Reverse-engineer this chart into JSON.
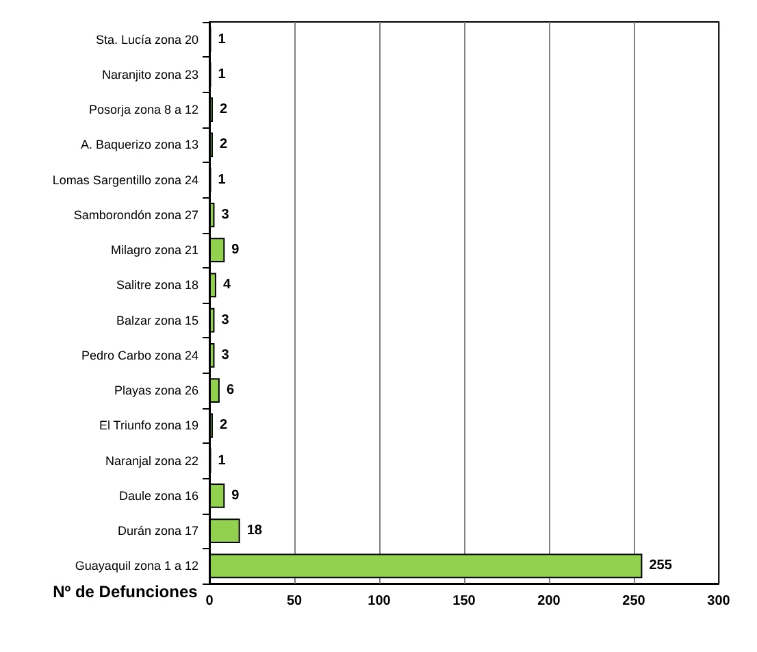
{
  "chart_data": {
    "type": "bar",
    "orientation": "horizontal",
    "xlabel": "Nº de Defunciones",
    "categories": [
      "Sta. Lucía zona 20",
      "Naranjito zona 23",
      "Posorja zona 8 a 12",
      "A. Baquerizo zona 13",
      "Lomas Sargentillo zona 24",
      "Samborondón zona 27",
      "Milagro zona 21",
      "Salitre zona 18",
      "Balzar zona 15",
      "Pedro Carbo zona 24",
      "Playas zona 26",
      "El Triunfo zona 19",
      "Naranjal zona 22",
      "Daule zona 16",
      "Durán zona 17",
      "Guayaquil zona 1 a 12"
    ],
    "values": [
      1,
      1,
      2,
      2,
      1,
      3,
      9,
      4,
      3,
      3,
      6,
      2,
      1,
      9,
      18,
      255
    ],
    "color": "#92d050",
    "data_labels": true,
    "grid": "x",
    "xlim": [
      0,
      300
    ],
    "xticks": [
      0,
      50,
      100,
      150,
      200,
      250,
      300
    ]
  }
}
